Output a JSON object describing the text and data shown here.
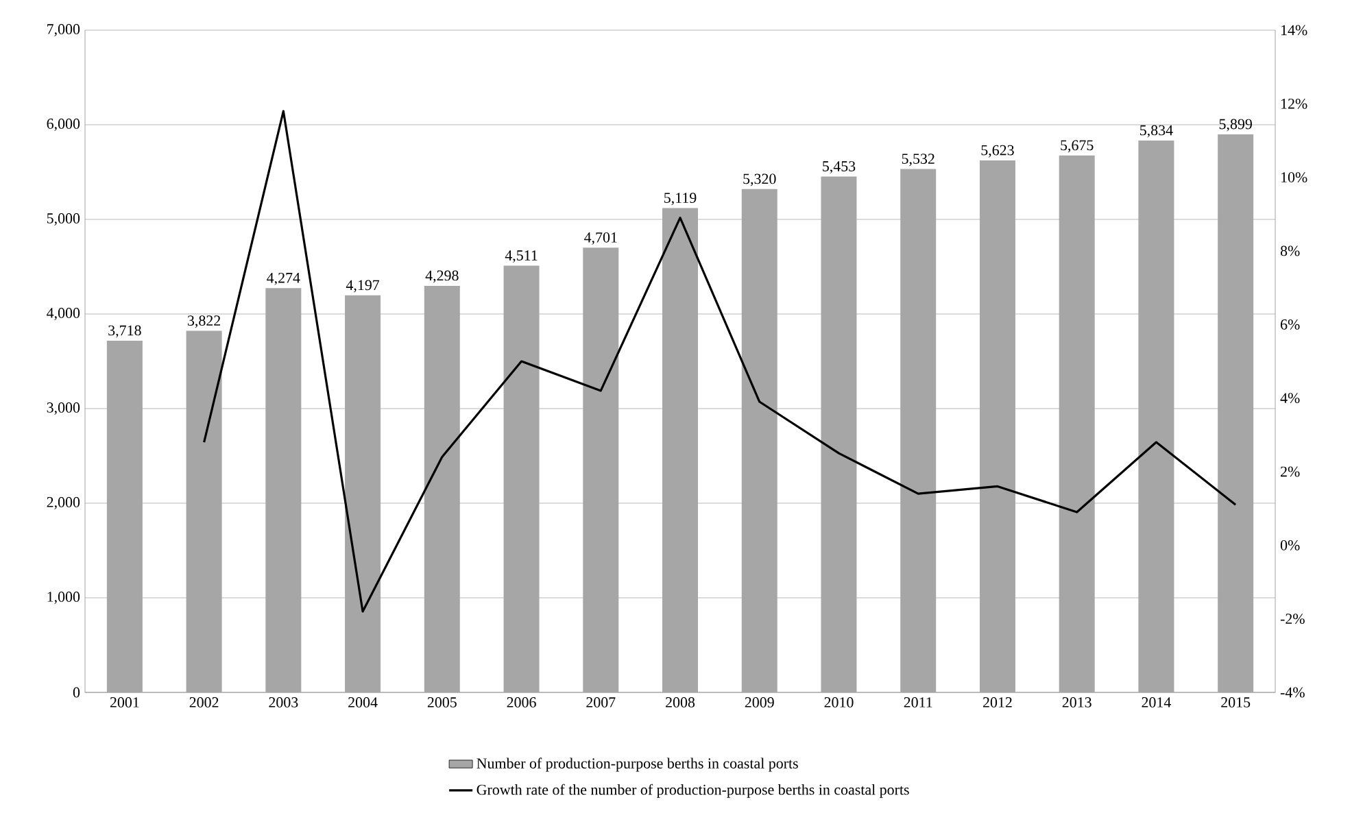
{
  "chart_data": {
    "type": "bar",
    "categories": [
      "2001",
      "2002",
      "2003",
      "2004",
      "2005",
      "2006",
      "2007",
      "2008",
      "2009",
      "2010",
      "2011",
      "2012",
      "2013",
      "2014",
      "2015"
    ],
    "series": [
      {
        "name": "Number of production-purpose berths in coastal ports",
        "color": "#a6a6a6",
        "values": [
          3718,
          3822,
          4274,
          4197,
          4298,
          4511,
          4701,
          5119,
          5320,
          5453,
          5532,
          5623,
          5675,
          5834,
          5899
        ],
        "value_labels": [
          "3,718",
          "3,822",
          "4,274",
          "4,197",
          "4,298",
          "4,511",
          "4,701",
          "5,119",
          "5,320",
          "5,453",
          "5,532",
          "5,623",
          "5,675",
          "5,834",
          "5,899"
        ]
      },
      {
        "name": "Growth rate of the number of production-purpose berths in coastal ports",
        "type": "line",
        "axis": "y2",
        "color": "#000000",
        "values": [
          null,
          2.8,
          11.8,
          -1.8,
          2.4,
          5.0,
          4.2,
          8.9,
          3.9,
          2.5,
          1.4,
          1.6,
          0.9,
          2.8,
          1.1
        ]
      }
    ],
    "ylim": [
      0,
      7000
    ],
    "yticks": [
      0,
      {
        "value": 1000,
        "label": "1,000"
      },
      {
        "value": 2000,
        "label": "2,000"
      },
      {
        "value": 3000,
        "label": "3,000"
      },
      {
        "value": 4000,
        "label": "4,000"
      },
      {
        "value": 5000,
        "label": "5,000"
      },
      {
        "value": 6000,
        "label": "6,000"
      },
      {
        "value": 7000,
        "label": "7,000"
      }
    ],
    "y2lim": [
      -4,
      14
    ],
    "y2ticks": [
      {
        "value": -4,
        "label": "-4%"
      },
      {
        "value": -2,
        "label": "-2%"
      },
      {
        "value": 0,
        "label": "0%"
      },
      {
        "value": 2,
        "label": "2%"
      },
      {
        "value": 4,
        "label": "4%"
      },
      {
        "value": 6,
        "label": "6%"
      },
      {
        "value": 8,
        "label": "8%"
      },
      {
        "value": 10,
        "label": "10%"
      },
      {
        "value": 12,
        "label": "12%"
      },
      {
        "value": 14,
        "label": "14%"
      }
    ],
    "grid": "y",
    "legend": "bottom",
    "marker": "none",
    "line_style": "solid"
  }
}
